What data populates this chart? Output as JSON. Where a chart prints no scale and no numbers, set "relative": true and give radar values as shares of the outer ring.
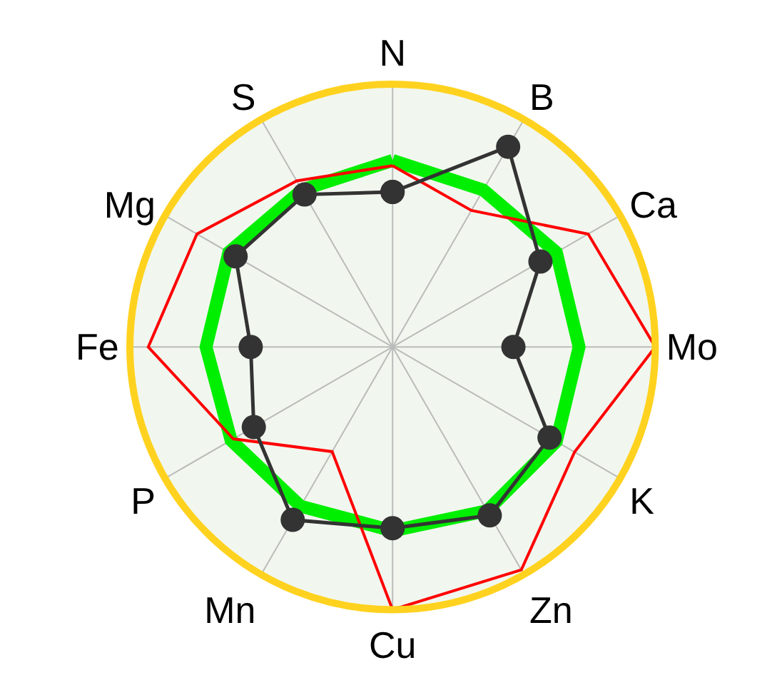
{
  "chart_data": {
    "type": "radar",
    "relative": true,
    "grid": true,
    "categories": [
      "N",
      "B",
      "Ca",
      "Mo",
      "K",
      "Zn",
      "Cu",
      "Mn",
      "P",
      "Fe",
      "Mg",
      "S"
    ],
    "series": [
      {
        "color": "#00ee00",
        "marker": "none",
        "values": [
          0.71,
          0.69,
          0.72,
          0.71,
          0.72,
          0.72,
          0.7,
          0.7,
          0.71,
          0.71,
          0.72,
          0.69
        ]
      },
      {
        "color": "#ff0000",
        "marker": "none",
        "values": [
          0.69,
          0.6,
          0.86,
          1.0,
          0.8,
          0.98,
          1.0,
          0.46,
          0.7,
          0.93,
          0.86,
          0.73
        ]
      },
      {
        "color": "#333333",
        "marker": "circle",
        "values": [
          0.59,
          0.88,
          0.65,
          0.46,
          0.69,
          0.74,
          0.69,
          0.76,
          0.61,
          0.54,
          0.69,
          0.67
        ]
      }
    ]
  }
}
